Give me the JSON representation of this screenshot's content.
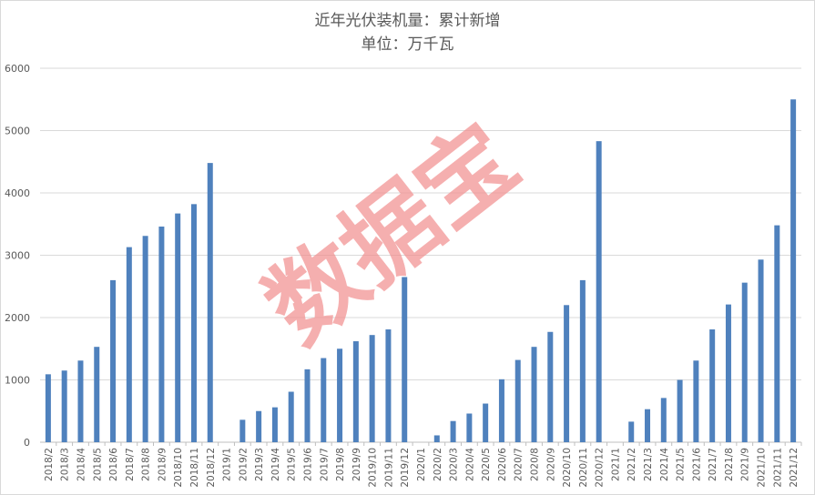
{
  "chart_data": {
    "type": "bar",
    "title": "近年光伏装机量：累计新增",
    "subtitle": "单位：万千瓦",
    "xlabel": "",
    "ylabel": "",
    "ylim": [
      0,
      6000
    ],
    "yticks": [
      0,
      1000,
      2000,
      3000,
      4000,
      5000,
      6000
    ],
    "grid": true,
    "bar_color": "#4f81bd",
    "categories": [
      "2018/2",
      "2018/3",
      "2018/4",
      "2018/5",
      "2018/6",
      "2018/7",
      "2018/8",
      "2018/9",
      "2018/10",
      "2018/11",
      "2018/12",
      "2019/1",
      "2019/2",
      "2019/3",
      "2019/4",
      "2019/5",
      "2019/6",
      "2019/7",
      "2019/8",
      "2019/9",
      "2019/10",
      "2019/11",
      "2019/12",
      "2020/1",
      "2020/2",
      "2020/3",
      "2020/4",
      "2020/5",
      "2020/6",
      "2020/7",
      "2020/8",
      "2020/9",
      "2020/10",
      "2020/11",
      "2020/12",
      "2021/1",
      "2021/2",
      "2021/3",
      "2021/4",
      "2021/5",
      "2021/6",
      "2021/7",
      "2021/8",
      "2021/9",
      "2021/10",
      "2021/11",
      "2021/12"
    ],
    "values": [
      1090,
      1150,
      1310,
      1530,
      2600,
      3130,
      3310,
      3460,
      3670,
      3820,
      4480,
      0,
      360,
      500,
      560,
      810,
      1170,
      1350,
      1500,
      1620,
      1720,
      1810,
      2650,
      0,
      110,
      340,
      460,
      620,
      1010,
      1320,
      1530,
      1770,
      2200,
      2600,
      4830,
      0,
      330,
      530,
      710,
      1000,
      1310,
      1810,
      2210,
      2560,
      2930,
      3480,
      5500
    ]
  },
  "watermark": {
    "text": "数据宝",
    "color": "#f28e8e"
  }
}
